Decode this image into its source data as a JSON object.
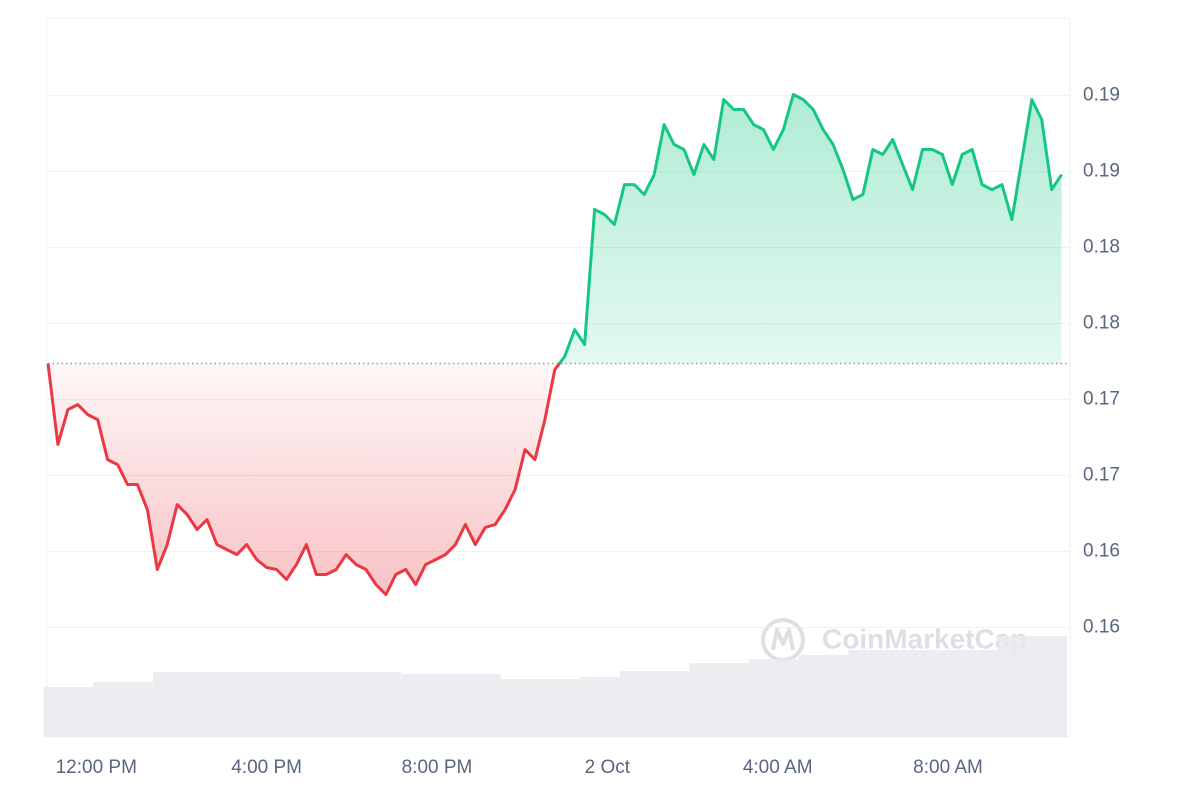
{
  "chart_data": {
    "type": "line",
    "x": [
      652,
      666,
      680,
      694,
      708,
      722,
      736,
      750,
      764,
      778,
      792,
      806,
      820,
      834,
      848,
      862,
      876,
      890,
      904,
      918,
      932,
      946,
      960,
      974,
      988,
      1002,
      1016,
      1030,
      1044,
      1058,
      1072,
      1086,
      1100,
      1114,
      1128,
      1142,
      1156,
      1170,
      1184,
      1198,
      1212,
      1226,
      1240,
      1254,
      1268,
      1282,
      1296,
      1310,
      1324,
      1338,
      1352,
      1366,
      1380,
      1394,
      1408,
      1422,
      1436,
      1450,
      1464,
      1478,
      1492,
      1506,
      1520,
      1534,
      1548,
      1562,
      1576,
      1590,
      1604,
      1618,
      1632,
      1646,
      1660,
      1674,
      1688,
      1702,
      1716,
      1730,
      1744,
      1758,
      1772,
      1786,
      1800,
      1814,
      1828,
      1842,
      1856,
      1870,
      1884,
      1898,
      1912,
      1926,
      1940,
      1954,
      1968,
      1982,
      1996,
      2010,
      2024,
      2038,
      2052,
      2066,
      2080
    ],
    "values": [
      0.17237,
      0.16704,
      0.16934,
      0.16967,
      0.16901,
      0.16868,
      0.16605,
      0.16572,
      0.16441,
      0.16441,
      0.16276,
      0.15882,
      0.16046,
      0.16309,
      0.16243,
      0.16145,
      0.1621,
      0.16046,
      0.16013,
      0.1598,
      0.16046,
      0.15947,
      0.15895,
      0.15882,
      0.15816,
      0.15914,
      0.16046,
      0.15849,
      0.15849,
      0.15882,
      0.1598,
      0.15914,
      0.15882,
      0.15783,
      0.15717,
      0.15849,
      0.15882,
      0.15783,
      0.15914,
      0.15947,
      0.1598,
      0.16046,
      0.16178,
      0.16046,
      0.16158,
      0.16178,
      0.16276,
      0.16408,
      0.16671,
      0.16605,
      0.16868,
      0.17197,
      0.17283,
      0.1746,
      0.17362,
      0.1825,
      0.18217,
      0.18151,
      0.18414,
      0.18414,
      0.18349,
      0.1848,
      0.18809,
      0.18678,
      0.18645,
      0.1848,
      0.18678,
      0.18579,
      0.18974,
      0.18908,
      0.18908,
      0.18809,
      0.18776,
      0.18645,
      0.18776,
      0.19007,
      0.18974,
      0.18908,
      0.18776,
      0.18678,
      0.18513,
      0.18316,
      0.18349,
      0.18645,
      0.18612,
      0.1871,
      0.18546,
      0.18381,
      0.18645,
      0.18645,
      0.18612,
      0.18414,
      0.18612,
      0.18645,
      0.18414,
      0.18381,
      0.18414,
      0.18184,
      0.18579,
      0.18974,
      0.18842,
      0.18381,
      0.1848
    ],
    "xlim": [
      652,
      2089
    ],
    "ylim": [
      0.1478,
      0.1951
    ],
    "xticks": [
      {
        "value": 720,
        "label": "12:00 PM"
      },
      {
        "value": 960,
        "label": "4:00 PM"
      },
      {
        "value": 1200,
        "label": "8:00 PM"
      },
      {
        "value": 1440,
        "label": "2 Oct"
      },
      {
        "value": 1680,
        "label": "4:00 AM"
      },
      {
        "value": 1920,
        "label": "8:00 AM"
      }
    ],
    "yticks": [
      0.19,
      {
        "value": 0.185,
        "label": "0.19"
      },
      0.18,
      {
        "value": 0.175,
        "label": "0.18"
      },
      0.17,
      {
        "value": 0.165,
        "label": "0.17"
      },
      0.16,
      {
        "value": 0.155,
        "label": "0.16"
      }
    ],
    "grid": true,
    "up_color": "#16c784",
    "down_color": "#ea3943",
    "volume": [
      50,
      50,
      50,
      50,
      50,
      55,
      55,
      55,
      55,
      55,
      55,
      65,
      65,
      65,
      65,
      65,
      65,
      65,
      65,
      65,
      65,
      65,
      65,
      65,
      65,
      65,
      65,
      65,
      65,
      65,
      65,
      65,
      65,
      65,
      65,
      65,
      63,
      63,
      63,
      63,
      63,
      63,
      63,
      63,
      63,
      63,
      58,
      58,
      58,
      58,
      58,
      58,
      58,
      58,
      60,
      60,
      60,
      60,
      66,
      66,
      66,
      66,
      66,
      66,
      66,
      74,
      74,
      74,
      74,
      74,
      74,
      78,
      78,
      78,
      78,
      78,
      82,
      82,
      82,
      82,
      82,
      87,
      87,
      87,
      87,
      87,
      87,
      87,
      87,
      87,
      87,
      87,
      87,
      87,
      87,
      87,
      101,
      101,
      101,
      101,
      101,
      101,
      101
    ],
    "volume_lim": [
      0,
      120
    ],
    "volume_color": "#e8eaee",
    "watermark": "CoinMarketCap"
  }
}
